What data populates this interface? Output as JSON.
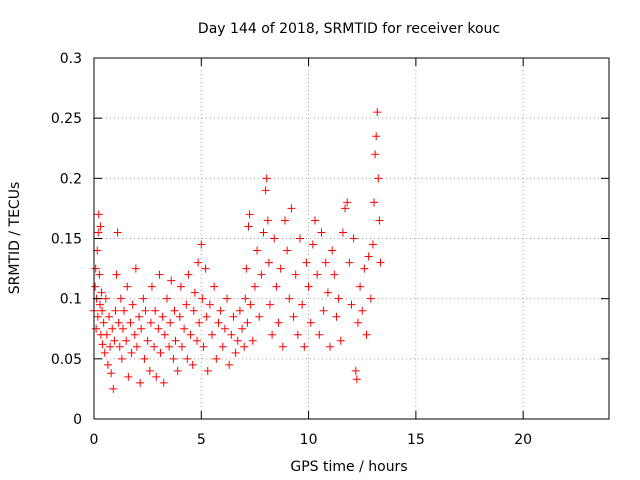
{
  "chart_data": {
    "type": "scatter",
    "title": "Day 144 of 2018, SRMTID for receiver kouc",
    "xlabel": "GPS time / hours",
    "ylabel": "SRMTID / TECUs",
    "xlim": [
      0,
      24
    ],
    "ylim": [
      0,
      0.3
    ],
    "xticks": [
      0,
      5,
      10,
      15,
      20
    ],
    "xtick_labels": [
      "0",
      "5",
      "10",
      "15",
      "20"
    ],
    "yticks": [
      0,
      0.05,
      0.1,
      0.15,
      0.2,
      0.25,
      0.3
    ],
    "ytick_labels": [
      "0",
      "0.05",
      "0.1",
      "0.15",
      "0.2",
      "0.25",
      "0.3"
    ],
    "grid": true,
    "marker": "+",
    "color": "#ff0000",
    "series": [
      {
        "name": "SRMTID",
        "points": [
          [
            0.0,
            0.09
          ],
          [
            0.05,
            0.11
          ],
          [
            0.08,
            0.125
          ],
          [
            0.1,
            0.075
          ],
          [
            0.12,
            0.1
          ],
          [
            0.15,
            0.14
          ],
          [
            0.18,
            0.085
          ],
          [
            0.2,
            0.155
          ],
          [
            0.22,
            0.17
          ],
          [
            0.25,
            0.12
          ],
          [
            0.28,
            0.095
          ],
          [
            0.3,
            0.16
          ],
          [
            0.32,
            0.07
          ],
          [
            0.35,
            0.105
          ],
          [
            0.38,
            0.09
          ],
          [
            0.4,
            0.062
          ],
          [
            0.45,
            0.08
          ],
          [
            0.5,
            0.055
          ],
          [
            0.55,
            0.1
          ],
          [
            0.6,
            0.07
          ],
          [
            0.65,
            0.045
          ],
          [
            0.7,
            0.085
          ],
          [
            0.75,
            0.06
          ],
          [
            0.8,
            0.038
          ],
          [
            0.85,
            0.075
          ],
          [
            0.9,
            0.025
          ],
          [
            0.95,
            0.065
          ],
          [
            1.0,
            0.09
          ],
          [
            1.05,
            0.12
          ],
          [
            1.1,
            0.155
          ],
          [
            1.15,
            0.08
          ],
          [
            1.2,
            0.06
          ],
          [
            1.25,
            0.1
          ],
          [
            1.3,
            0.05
          ],
          [
            1.35,
            0.075
          ],
          [
            1.4,
            0.09
          ],
          [
            1.5,
            0.065
          ],
          [
            1.55,
            0.11
          ],
          [
            1.6,
            0.035
          ],
          [
            1.7,
            0.08
          ],
          [
            1.75,
            0.055
          ],
          [
            1.8,
            0.095
          ],
          [
            1.9,
            0.07
          ],
          [
            1.95,
            0.125
          ],
          [
            2.0,
            0.06
          ],
          [
            2.1,
            0.085
          ],
          [
            2.15,
            0.03
          ],
          [
            2.2,
            0.075
          ],
          [
            2.3,
            0.1
          ],
          [
            2.35,
            0.05
          ],
          [
            2.4,
            0.09
          ],
          [
            2.5,
            0.065
          ],
          [
            2.6,
            0.04
          ],
          [
            2.65,
            0.08
          ],
          [
            2.7,
            0.11
          ],
          [
            2.8,
            0.06
          ],
          [
            2.85,
            0.09
          ],
          [
            2.9,
            0.035
          ],
          [
            3.0,
            0.075
          ],
          [
            3.05,
            0.12
          ],
          [
            3.1,
            0.055
          ],
          [
            3.2,
            0.085
          ],
          [
            3.25,
            0.03
          ],
          [
            3.3,
            0.07
          ],
          [
            3.4,
            0.1
          ],
          [
            3.5,
            0.06
          ],
          [
            3.55,
            0.08
          ],
          [
            3.6,
            0.115
          ],
          [
            3.7,
            0.05
          ],
          [
            3.75,
            0.09
          ],
          [
            3.8,
            0.065
          ],
          [
            3.9,
            0.04
          ],
          [
            4.0,
            0.085
          ],
          [
            4.05,
            0.11
          ],
          [
            4.1,
            0.06
          ],
          [
            4.2,
            0.075
          ],
          [
            4.3,
            0.095
          ],
          [
            4.35,
            0.05
          ],
          [
            4.4,
            0.12
          ],
          [
            4.5,
            0.07
          ],
          [
            4.6,
            0.045
          ],
          [
            4.65,
            0.09
          ],
          [
            4.7,
            0.105
          ],
          [
            4.8,
            0.065
          ],
          [
            4.85,
            0.13
          ],
          [
            4.9,
            0.08
          ],
          [
            5.0,
            0.145
          ],
          [
            5.05,
            0.1
          ],
          [
            5.1,
            0.06
          ],
          [
            5.2,
            0.125
          ],
          [
            5.25,
            0.085
          ],
          [
            5.3,
            0.04
          ],
          [
            5.4,
            0.095
          ],
          [
            5.5,
            0.07
          ],
          [
            5.6,
            0.11
          ],
          [
            5.7,
            0.05
          ],
          [
            5.8,
            0.08
          ],
          [
            5.9,
            0.09
          ],
          [
            6.0,
            0.06
          ],
          [
            6.1,
            0.075
          ],
          [
            6.2,
            0.1
          ],
          [
            6.3,
            0.045
          ],
          [
            6.4,
            0.07
          ],
          [
            6.5,
            0.085
          ],
          [
            6.6,
            0.055
          ],
          [
            6.7,
            0.065
          ],
          [
            6.8,
            0.09
          ],
          [
            6.9,
            0.075
          ],
          [
            7.0,
            0.06
          ],
          [
            7.05,
            0.1
          ],
          [
            7.1,
            0.125
          ],
          [
            7.15,
            0.08
          ],
          [
            7.2,
            0.16
          ],
          [
            7.25,
            0.17
          ],
          [
            7.3,
            0.095
          ],
          [
            7.4,
            0.065
          ],
          [
            7.5,
            0.11
          ],
          [
            7.6,
            0.14
          ],
          [
            7.7,
            0.085
          ],
          [
            7.8,
            0.12
          ],
          [
            7.9,
            0.155
          ],
          [
            8.0,
            0.19
          ],
          [
            8.05,
            0.2
          ],
          [
            8.1,
            0.165
          ],
          [
            8.15,
            0.13
          ],
          [
            8.2,
            0.095
          ],
          [
            8.3,
            0.07
          ],
          [
            8.4,
            0.15
          ],
          [
            8.5,
            0.11
          ],
          [
            8.6,
            0.08
          ],
          [
            8.7,
            0.125
          ],
          [
            8.8,
            0.06
          ],
          [
            8.9,
            0.165
          ],
          [
            9.0,
            0.14
          ],
          [
            9.1,
            0.1
          ],
          [
            9.2,
            0.175
          ],
          [
            9.3,
            0.085
          ],
          [
            9.4,
            0.12
          ],
          [
            9.5,
            0.07
          ],
          [
            9.6,
            0.15
          ],
          [
            9.7,
            0.095
          ],
          [
            9.8,
            0.06
          ],
          [
            9.9,
            0.13
          ],
          [
            10.0,
            0.11
          ],
          [
            10.1,
            0.08
          ],
          [
            10.2,
            0.145
          ],
          [
            10.3,
            0.165
          ],
          [
            10.4,
            0.12
          ],
          [
            10.5,
            0.07
          ],
          [
            10.6,
            0.155
          ],
          [
            10.7,
            0.09
          ],
          [
            10.8,
            0.13
          ],
          [
            10.9,
            0.105
          ],
          [
            11.0,
            0.06
          ],
          [
            11.1,
            0.14
          ],
          [
            11.2,
            0.12
          ],
          [
            11.3,
            0.085
          ],
          [
            11.4,
            0.1
          ],
          [
            11.5,
            0.065
          ],
          [
            11.6,
            0.155
          ],
          [
            11.7,
            0.175
          ],
          [
            11.8,
            0.18
          ],
          [
            11.9,
            0.13
          ],
          [
            12.0,
            0.095
          ],
          [
            12.1,
            0.15
          ],
          [
            12.2,
            0.04
          ],
          [
            12.25,
            0.033
          ],
          [
            12.3,
            0.08
          ],
          [
            12.4,
            0.11
          ],
          [
            12.5,
            0.09
          ],
          [
            12.6,
            0.125
          ],
          [
            12.7,
            0.07
          ],
          [
            12.8,
            0.135
          ],
          [
            12.9,
            0.1
          ],
          [
            13.0,
            0.145
          ],
          [
            13.05,
            0.18
          ],
          [
            13.1,
            0.22
          ],
          [
            13.15,
            0.235
          ],
          [
            13.2,
            0.255
          ],
          [
            13.25,
            0.2
          ],
          [
            13.3,
            0.165
          ],
          [
            13.35,
            0.13
          ]
        ]
      }
    ]
  }
}
